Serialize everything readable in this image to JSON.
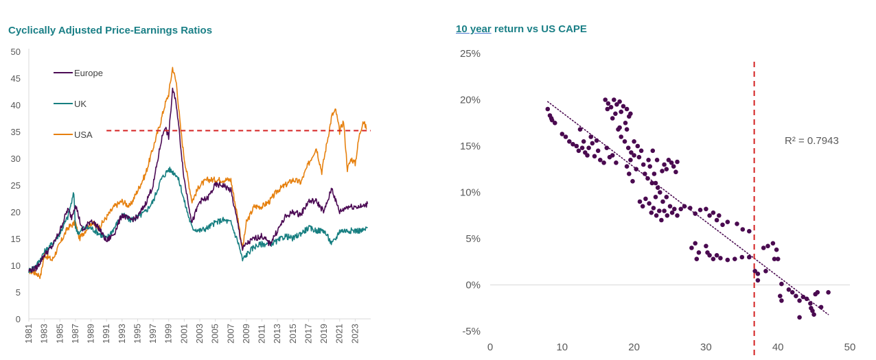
{
  "colors": {
    "europe": "#4b0a54",
    "uk": "#167e80",
    "usa": "#e6800e",
    "scatter": "#4a0a50",
    "reference_line": "#d42020",
    "axis": "#d9d9d9",
    "title": "#1a7f86"
  },
  "chart_data": [
    {
      "type": "line",
      "title": "Cyclically Adjusted Price-Earnings Ratios",
      "xlabel": "",
      "ylabel": "",
      "xlim": [
        1981,
        2025
      ],
      "ylim": [
        0,
        50
      ],
      "y_ticks": [
        0,
        5,
        10,
        15,
        20,
        25,
        30,
        35,
        40,
        45,
        50
      ],
      "x_tick_labels": [
        "1981",
        "1983",
        "1985",
        "1987",
        "1989",
        "1991",
        "1993",
        "1995",
        "1997",
        "1999",
        "2001",
        "2003",
        "2005",
        "2007",
        "2009",
        "2011",
        "2013",
        "2015",
        "2017",
        "2019",
        "2021",
        "2023"
      ],
      "legend_position": "top-left",
      "reference_line": {
        "y": 35.2,
        "x_start": 1991,
        "x_end": 2025,
        "style": "dashed"
      },
      "series": [
        {
          "name": "Europe",
          "x": [
            1981,
            1982,
            1983,
            1984,
            1985,
            1986,
            1986.5,
            1987,
            1987.8,
            1988,
            1989,
            1990,
            1991,
            1992,
            1993,
            1994,
            1995,
            1996,
            1997,
            1998,
            1998.5,
            1999,
            1999.5,
            2000,
            2000.5,
            2001,
            2002,
            2003,
            2004,
            2005,
            2006,
            2007,
            2008,
            2008.5,
            2009,
            2010,
            2011,
            2012,
            2013,
            2014,
            2015,
            2016,
            2017,
            2018,
            2019,
            2020,
            2020.5,
            2021,
            2022,
            2023,
            2024,
            2024.6
          ],
          "y": [
            9,
            9.5,
            12,
            13.5,
            16.5,
            20.5,
            19,
            21.5,
            17,
            16.5,
            18.5,
            17,
            14.5,
            16,
            19.5,
            18.5,
            19,
            21.5,
            25,
            33,
            36,
            34,
            43,
            40,
            33,
            26,
            18,
            22,
            22.5,
            25,
            25,
            24,
            17,
            13,
            14,
            15,
            15.5,
            14,
            16.5,
            19,
            20,
            19.5,
            22,
            22,
            20,
            24.5,
            22,
            20,
            21,
            21,
            21,
            21.5
          ]
        },
        {
          "name": "UK",
          "x": [
            1981,
            1982,
            1983,
            1984,
            1985,
            1986,
            1986.8,
            1987,
            1987.5,
            1988,
            1989,
            1990,
            1991,
            1992,
            1993,
            1994,
            1995,
            1996,
            1997,
            1998,
            1999,
            1999.5,
            2000,
            2000.5,
            2001,
            2002,
            2003,
            2004,
            2005,
            2006,
            2007,
            2008,
            2008.5,
            2009,
            2010,
            2011,
            2012,
            2013,
            2014,
            2015,
            2016,
            2017,
            2018,
            2019,
            2020,
            2020.5,
            2021,
            2022,
            2023,
            2024,
            2024.6
          ],
          "y": [
            9,
            10,
            12.5,
            14,
            16,
            19,
            23.5,
            17,
            16,
            17,
            17,
            16,
            15,
            17,
            19.5,
            18.5,
            19,
            20,
            22,
            26,
            28,
            27.5,
            27,
            25,
            22,
            17,
            16.5,
            17,
            18,
            18.5,
            18,
            14,
            11,
            12,
            13.5,
            14,
            14,
            14.5,
            15.5,
            15,
            16,
            17,
            16.5,
            16.5,
            14,
            15,
            16.5,
            16.5,
            16.5,
            16.5,
            17
          ]
        },
        {
          "name": "USA",
          "x": [
            1981,
            1982,
            1982.5,
            1983,
            1984,
            1985,
            1986,
            1987,
            1987.5,
            1988,
            1989,
            1990,
            1991,
            1992,
            1993,
            1994,
            1995,
            1996,
            1997,
            1998,
            1998.5,
            1999,
            1999.5,
            2000,
            2000.5,
            2001,
            2002,
            2003,
            2004,
            2005,
            2006,
            2007,
            2008,
            2008.5,
            2009,
            2010,
            2011,
            2012,
            2013,
            2014,
            2015,
            2016,
            2017,
            2018,
            2018.7,
            2019,
            2020,
            2020.5,
            2021,
            2021.5,
            2022,
            2022.5,
            2023,
            2023.5,
            2024,
            2024.5
          ],
          "y": [
            9,
            8.5,
            8,
            12,
            11,
            14,
            17,
            18,
            15,
            16,
            18,
            17,
            19,
            21,
            22,
            21,
            24,
            27,
            32,
            37,
            40,
            42,
            47,
            44,
            36,
            30,
            22,
            25,
            26,
            26,
            26,
            26,
            18,
            13,
            18,
            21,
            21,
            22,
            24,
            25,
            26,
            25.5,
            29,
            32,
            27.5,
            30,
            38,
            39,
            35,
            37,
            28,
            30,
            29,
            34,
            37,
            35.5
          ]
        }
      ]
    },
    {
      "type": "scatter",
      "title": "10 year return vs US CAPE",
      "xlabel": "",
      "ylabel": "",
      "xlim": [
        0,
        50
      ],
      "ylim": [
        -5,
        25
      ],
      "x_ticks": [
        0,
        10,
        20,
        30,
        40,
        50
      ],
      "y_ticks": [
        -5,
        0,
        5,
        10,
        15,
        20,
        25
      ],
      "y_tick_format": "percent",
      "annotation": "R² = 0.7943",
      "trendline": {
        "x": [
          8,
          47
        ],
        "y": [
          19.8,
          -3.2
        ],
        "style": "dotted"
      },
      "reference_line": {
        "x": 36.7,
        "style": "dashed"
      },
      "points": [
        [
          8,
          19
        ],
        [
          8.3,
          18.3
        ],
        [
          8.6,
          17.8
        ],
        [
          9,
          17.5
        ],
        [
          8.5,
          18
        ],
        [
          10,
          16.3
        ],
        [
          10.5,
          16
        ],
        [
          11,
          15.5
        ],
        [
          11.5,
          15.2
        ],
        [
          12,
          15
        ],
        [
          12.3,
          14.5
        ],
        [
          12.8,
          14.8
        ],
        [
          13.2,
          14.3
        ],
        [
          13.5,
          14
        ],
        [
          13,
          15.5
        ],
        [
          12.5,
          16.8
        ],
        [
          13.7,
          14.8
        ],
        [
          14.2,
          15.3
        ],
        [
          14.5,
          13.9
        ],
        [
          15,
          14.5
        ],
        [
          15.3,
          13.5
        ],
        [
          15.8,
          13.2
        ],
        [
          16.2,
          14.8
        ],
        [
          16.6,
          13.8
        ],
        [
          17,
          14
        ],
        [
          17.5,
          13.2
        ],
        [
          14,
          16
        ],
        [
          14.8,
          15.6
        ],
        [
          16,
          20
        ],
        [
          16.4,
          19.6
        ],
        [
          16.8,
          19.2
        ],
        [
          17.2,
          20
        ],
        [
          17.6,
          19.5
        ],
        [
          18,
          19.8
        ],
        [
          18.5,
          19.3
        ],
        [
          19,
          19
        ],
        [
          19.5,
          18.5
        ],
        [
          16.3,
          19
        ],
        [
          17.4,
          18.5
        ],
        [
          18.2,
          18.7
        ],
        [
          19.3,
          18.2
        ],
        [
          18.8,
          17.5
        ],
        [
          19,
          16.8
        ],
        [
          18,
          17
        ],
        [
          17,
          18
        ],
        [
          17.8,
          16.8
        ],
        [
          18.2,
          16
        ],
        [
          18.7,
          15.5
        ],
        [
          19.2,
          14.8
        ],
        [
          19.6,
          14.3
        ],
        [
          20,
          15.5
        ],
        [
          20.5,
          15
        ],
        [
          20,
          14
        ],
        [
          19.5,
          13.5
        ],
        [
          19,
          12.8
        ],
        [
          19.3,
          12
        ],
        [
          19.8,
          11.2
        ],
        [
          20.3,
          12.5
        ],
        [
          20.7,
          13.8
        ],
        [
          21,
          14.5
        ],
        [
          21.3,
          13
        ],
        [
          21.5,
          12
        ],
        [
          21.9,
          11.5
        ],
        [
          22.2,
          12.8
        ],
        [
          22.5,
          11
        ],
        [
          22.8,
          12
        ],
        [
          23,
          11
        ],
        [
          23.3,
          10.5
        ],
        [
          23.6,
          10
        ],
        [
          23.9,
          12.3
        ],
        [
          24.2,
          13
        ],
        [
          24.5,
          12.5
        ],
        [
          24.8,
          13.5
        ],
        [
          25.2,
          13.2
        ],
        [
          25.5,
          12.8
        ],
        [
          25.8,
          12.2
        ],
        [
          26,
          13.3
        ],
        [
          22,
          13.5
        ],
        [
          22.6,
          14.5
        ],
        [
          23.2,
          13.5
        ],
        [
          20.8,
          9
        ],
        [
          21.2,
          8.5
        ],
        [
          21.6,
          9.3
        ],
        [
          22.1,
          8.8
        ],
        [
          22.4,
          7.8
        ],
        [
          22.7,
          8.3
        ],
        [
          23.1,
          7.5
        ],
        [
          23.5,
          8
        ],
        [
          23.8,
          7
        ],
        [
          24.2,
          8
        ],
        [
          24.6,
          7.5
        ],
        [
          25,
          8.5
        ],
        [
          25.3,
          7.8
        ],
        [
          25.6,
          8.2
        ],
        [
          26,
          7.5
        ],
        [
          24.5,
          9.5
        ],
        [
          24,
          9
        ],
        [
          23,
          9.5
        ],
        [
          26.5,
          8.2
        ],
        [
          27,
          8.5
        ],
        [
          27.8,
          8.3
        ],
        [
          28.5,
          7.7
        ],
        [
          29.2,
          8.1
        ],
        [
          30,
          8.2
        ],
        [
          30.5,
          7.5
        ],
        [
          31,
          7.8
        ],
        [
          31.5,
          7
        ],
        [
          31.8,
          7.5
        ],
        [
          32.3,
          6.5
        ],
        [
          33,
          6.8
        ],
        [
          34.3,
          6.6
        ],
        [
          35.1,
          6
        ],
        [
          36,
          5.8
        ],
        [
          28,
          4
        ],
        [
          28.5,
          4.5
        ],
        [
          29,
          3.5
        ],
        [
          30,
          4.2
        ],
        [
          30.5,
          3.2
        ],
        [
          31,
          2.8
        ],
        [
          32,
          2.9
        ],
        [
          33,
          2.7
        ],
        [
          34,
          2.8
        ],
        [
          35,
          3
        ],
        [
          36,
          3
        ],
        [
          28.7,
          2.8
        ],
        [
          30.2,
          3.5
        ],
        [
          31.5,
          3.2
        ],
        [
          36.8,
          1.5
        ],
        [
          37.2,
          1.2
        ],
        [
          37.2,
          0.5
        ],
        [
          38.3,
          1.5
        ],
        [
          38,
          4
        ],
        [
          38.6,
          4.2
        ],
        [
          39.3,
          4.5
        ],
        [
          39.8,
          3.8
        ],
        [
          40,
          2.8
        ],
        [
          39.5,
          2.8
        ],
        [
          40.5,
          0.1
        ],
        [
          40.3,
          -1.2
        ],
        [
          40.5,
          -1.7
        ],
        [
          41.5,
          -0.5
        ],
        [
          42,
          -0.8
        ],
        [
          42.5,
          -1.2
        ],
        [
          43,
          -1.7
        ],
        [
          43.5,
          -1.3
        ],
        [
          44,
          -1.5
        ],
        [
          44.5,
          -2
        ],
        [
          44.8,
          -2.8
        ],
        [
          45,
          -3.2
        ],
        [
          45.2,
          -1
        ],
        [
          45.5,
          -0.8
        ],
        [
          46,
          -2.4
        ],
        [
          47,
          -0.8
        ],
        [
          43,
          -3.5
        ],
        [
          44.6,
          -2.5
        ]
      ]
    }
  ]
}
